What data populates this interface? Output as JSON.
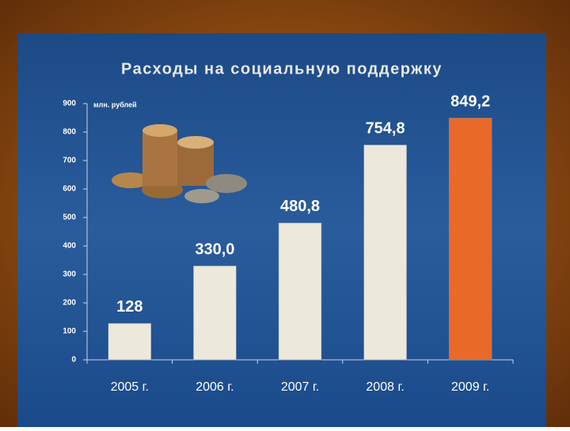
{
  "chart_data": {
    "type": "bar",
    "title": "Расходы на социальную поддержку",
    "y_label": "млн. рублей",
    "categories": [
      "2005 г.",
      "2006 г.",
      "2007 г.",
      "2008 г.",
      "2009 г."
    ],
    "values": [
      128,
      330,
      480.8,
      754.8,
      849.2
    ],
    "value_labels": [
      "128",
      "330,0",
      "480,8",
      "754,8",
      "849,2"
    ],
    "colors": [
      "#ece8dc",
      "#ece8dc",
      "#ece8dc",
      "#ece8dc",
      "#e8692a"
    ],
    "ylim": [
      0,
      900
    ],
    "yticks": [
      0,
      100,
      200,
      300,
      400,
      500,
      600,
      700,
      800,
      900
    ]
  }
}
